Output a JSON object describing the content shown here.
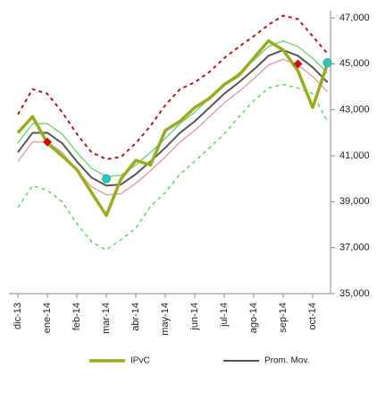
{
  "chart_data": {
    "type": "line",
    "categories": [
      "dic-13",
      null,
      "ene-14",
      null,
      "feb-14",
      null,
      "mar-14",
      null,
      "abr-14",
      null,
      "may-14",
      null,
      "jun-14",
      null,
      "jul-14",
      null,
      "ago-14",
      null,
      "sep-14",
      null,
      "oct-14",
      null
    ],
    "ylim": [
      35000,
      47000
    ],
    "yticks": [
      {
        "value": 35000,
        "label": "35,000"
      },
      {
        "value": 37000,
        "label": "37,000"
      },
      {
        "value": 39000,
        "label": "39,000"
      },
      {
        "value": 41000,
        "label": "41,000"
      },
      {
        "value": 43000,
        "label": "43,000"
      },
      {
        "value": 45000,
        "label": "45,000"
      },
      {
        "value": 47000,
        "label": "47,000"
      }
    ],
    "legend": "bottom",
    "series": [
      {
        "color": "#e2a4a4",
        "width": 1.5,
        "values": [
          40750,
          41600,
          41600,
          41150,
          40350,
          39650,
          39300,
          39350,
          39800,
          40350,
          40950,
          41600,
          42100,
          42700,
          43300,
          43800,
          44350,
          44950,
          45200,
          44950,
          44450,
          43800
        ]
      },
      {
        "color": "#7bd67b",
        "width": 1.5,
        "values": [
          41550,
          42400,
          42400,
          41950,
          41150,
          40450,
          40100,
          40150,
          40600,
          41150,
          41750,
          42400,
          42900,
          43500,
          44100,
          44600,
          45150,
          45750,
          46000,
          45750,
          45250,
          44600
        ]
      },
      {
        "color": "#b01c1c",
        "width": 2,
        "dashed": true,
        "values": [
          42800,
          43900,
          43700,
          42900,
          41950,
          41150,
          40850,
          40950,
          41550,
          42300,
          43200,
          43900,
          44200,
          44650,
          45250,
          45750,
          46200,
          46700,
          47100,
          46950,
          46200,
          45450
        ]
      },
      {
        "color": "#5fd65f",
        "width": 1.5,
        "dashed": true,
        "values": [
          38750,
          39700,
          39500,
          39000,
          38050,
          37250,
          36900,
          37350,
          37850,
          38800,
          39400,
          40200,
          40750,
          41350,
          41950,
          42700,
          43400,
          43950,
          44100,
          43950,
          43700,
          42500
        ]
      },
      {
        "name": "Prom. Mov.",
        "color": "#555555",
        "width": 2,
        "values": [
          41150,
          42000,
          42000,
          41550,
          40750,
          40050,
          39700,
          39750,
          40200,
          40750,
          41350,
          42000,
          42500,
          43100,
          43700,
          44200,
          44750,
          45350,
          45600,
          45350,
          44850,
          44200
        ]
      },
      {
        "name": "IPvC",
        "color": "#9aab1f",
        "width": 3.5,
        "values": [
          42000,
          42700,
          41550,
          41000,
          40400,
          39400,
          38400,
          40000,
          40800,
          40600,
          42100,
          42500,
          43100,
          43500,
          44100,
          44500,
          45250,
          46000,
          45600,
          44700,
          43100,
          45000
        ]
      }
    ],
    "markers": [
      {
        "shape": "diamond",
        "color": "#d01010",
        "values": [
          null,
          null,
          41600,
          null,
          null,
          null,
          null,
          null,
          null,
          null,
          null,
          null,
          null,
          null,
          null,
          null,
          null,
          null,
          null,
          45000,
          null,
          null
        ]
      },
      {
        "shape": "circle",
        "color": "#2ec4c4",
        "values": [
          null,
          null,
          null,
          null,
          null,
          null,
          40000,
          null,
          null,
          null,
          null,
          null,
          null,
          null,
          null,
          null,
          null,
          null,
          null,
          null,
          null,
          45050
        ]
      }
    ]
  }
}
